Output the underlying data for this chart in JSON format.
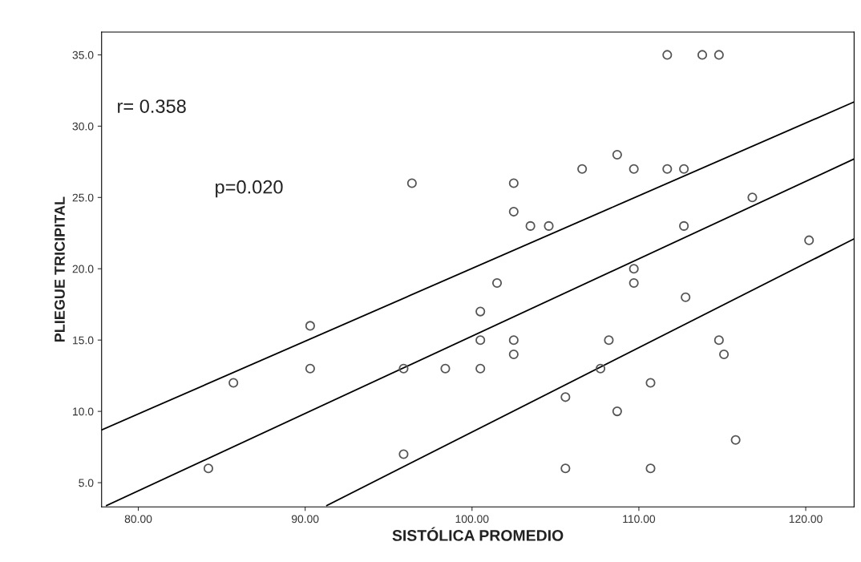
{
  "chart_data": {
    "type": "scatter",
    "xlabel": "SISTÓLICA PROMEDIO",
    "ylabel": "PLIEGUE TRICIPITAL",
    "annotations": [
      "r= 0.358",
      "p=0.020"
    ],
    "xlim": [
      77.8,
      122.9
    ],
    "ylim": [
      3.3,
      36.6
    ],
    "xticks": [
      {
        "value": 80,
        "label": "80.00"
      },
      {
        "value": 90,
        "label": "90.00"
      },
      {
        "value": 100,
        "label": "100.00"
      },
      {
        "value": 110,
        "label": "110.00"
      },
      {
        "value": 120,
        "label": "120.00"
      }
    ],
    "yticks": [
      {
        "value": 5,
        "label": "5.0"
      },
      {
        "value": 10,
        "label": "10.0"
      },
      {
        "value": 15,
        "label": "15.0"
      },
      {
        "value": 20,
        "label": "20.0"
      },
      {
        "value": 25,
        "label": "25.0"
      },
      {
        "value": 30,
        "label": "30.0"
      },
      {
        "value": 35,
        "label": "35.0"
      }
    ],
    "grid": false,
    "legend": false,
    "marker": "circle",
    "series": [
      {
        "color": "#555555",
        "x": [
          111.7,
          113.8,
          114.8,
          108.7,
          106.6,
          109.7,
          111.7,
          112.7,
          96.4,
          102.5,
          102.5,
          103.5,
          104.6,
          112.7,
          109.7,
          109.7,
          101.5,
          112.8,
          100.5,
          100.5,
          102.5,
          102.5,
          108.2,
          114.8,
          115.1,
          95.9,
          98.4,
          100.5,
          107.7,
          110.7,
          105.6,
          108.7,
          115.8,
          95.9,
          105.6,
          110.7,
          90.3,
          90.3,
          85.7,
          84.2,
          116.8,
          120.2
        ],
        "values": [
          35,
          35,
          35,
          28,
          27,
          27,
          27,
          27,
          26,
          26,
          24,
          23,
          23,
          23,
          20,
          19,
          19,
          18,
          17,
          15,
          15,
          14,
          15,
          15,
          14,
          13,
          13,
          13,
          13,
          12,
          11,
          10,
          8,
          7,
          6,
          6,
          16,
          13,
          12,
          6,
          25,
          22
        ]
      },
      {
        "type": "line",
        "color": "#000000",
        "line_style": "solid",
        "marker": "none",
        "x": [
          77.8,
          122.9
        ],
        "values": [
          8.7,
          31.7
        ]
      },
      {
        "type": "line",
        "color": "#000000",
        "line_style": "solid",
        "marker": "none",
        "x": [
          78.1,
          122.9
        ],
        "values": [
          3.4,
          27.7
        ]
      },
      {
        "type": "line",
        "color": "#000000",
        "line_style": "solid",
        "marker": "none",
        "x": [
          91.3,
          122.9
        ],
        "values": [
          3.4,
          22.1
        ]
      }
    ]
  }
}
